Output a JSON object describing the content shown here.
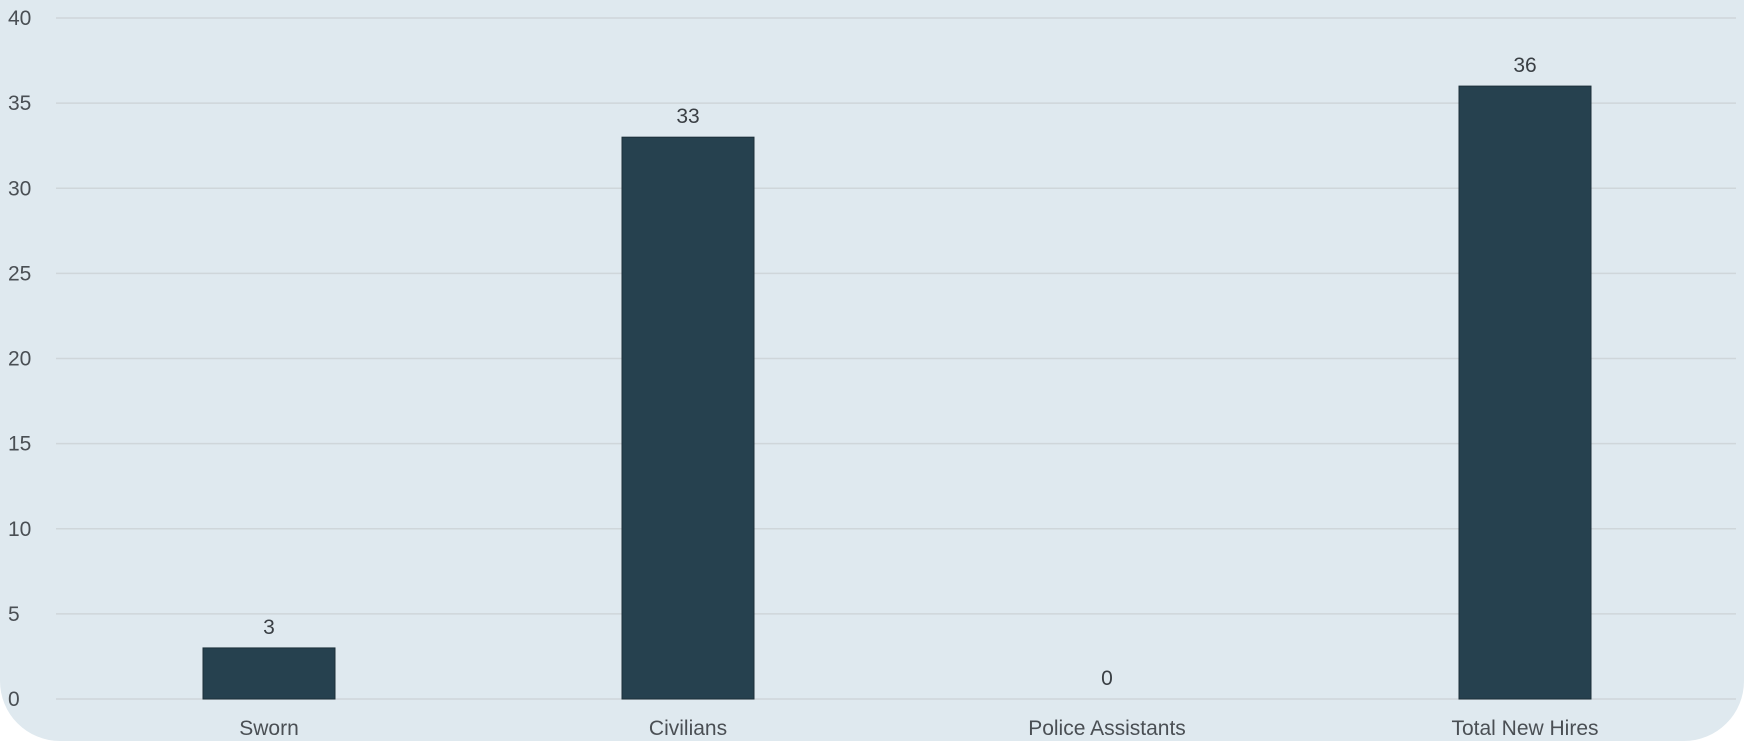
{
  "chart_data": {
    "type": "bar",
    "categories": [
      "Sworn",
      "Civilians",
      "Police Assistants",
      "Total New Hires"
    ],
    "values": [
      3,
      33,
      0,
      36
    ],
    "data_labels": [
      "3",
      "33",
      "0",
      "36"
    ],
    "title": "",
    "xlabel": "",
    "ylabel": "",
    "ylim": [
      0,
      40
    ],
    "yticks": [
      0,
      5,
      10,
      15,
      20,
      25,
      30,
      35,
      40
    ],
    "ytick_labels": [
      "0",
      "5",
      "10",
      "15",
      "20",
      "25",
      "30",
      "35",
      "40"
    ],
    "grid": true,
    "legend": "none",
    "colors": {
      "bar": "#26414f",
      "background": "#dfe9ef",
      "grid": "#cfd6da"
    }
  }
}
